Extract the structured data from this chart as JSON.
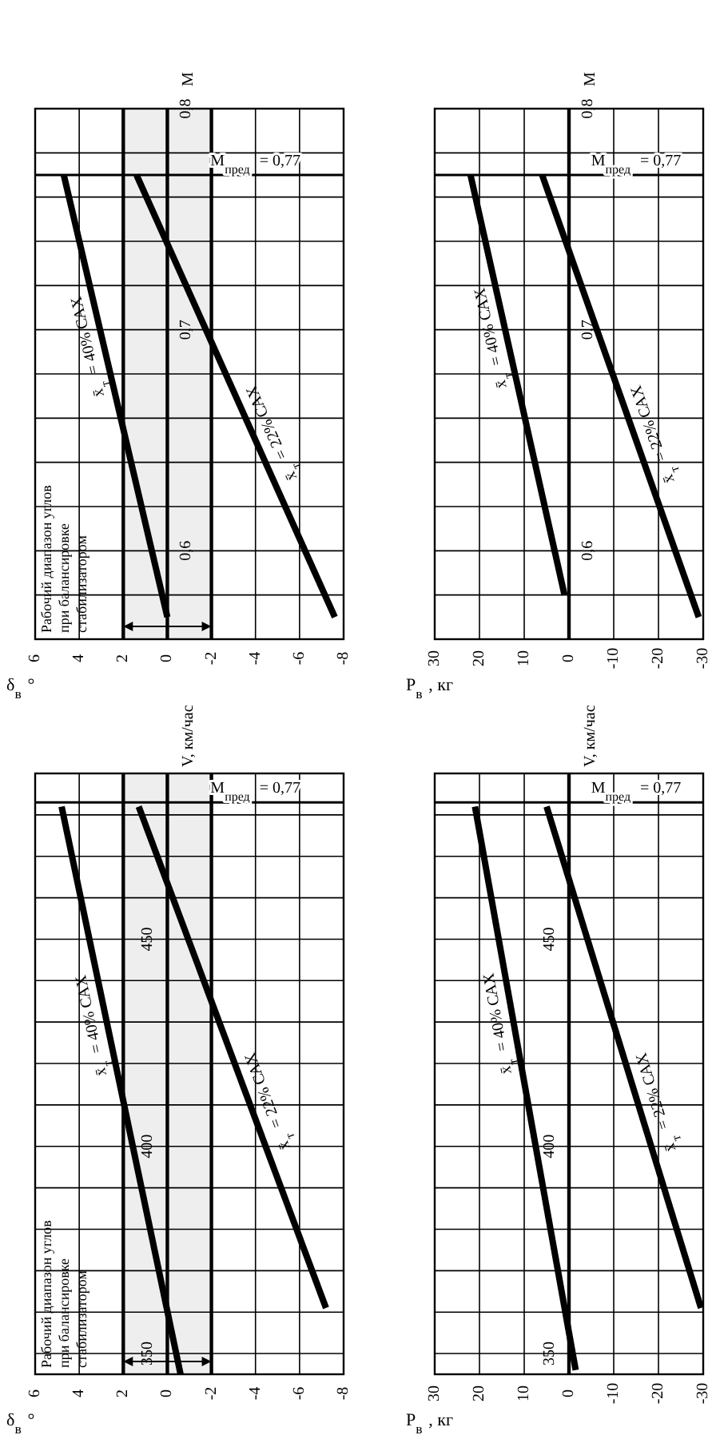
{
  "chart_data": [
    {
      "type": "line",
      "xlabel": "δ$_{в}$°",
      "ylabel": "M",
      "xlim": [
        6,
        -8
      ],
      "ylim": [
        0.56,
        0.8
      ],
      "grid": true,
      "xticks": [
        6,
        4,
        2,
        0,
        -2,
        -4,
        -6,
        -8
      ],
      "yticks": [
        {
          "value": 0.56,
          "label": null
        },
        {
          "value": 0.58,
          "label": null
        },
        {
          "value": 0.6,
          "label": "0,6"
        },
        {
          "value": 0.62,
          "label": null
        },
        {
          "value": 0.64,
          "label": null
        },
        {
          "value": 0.66,
          "label": null
        },
        {
          "value": 0.68,
          "label": null
        },
        {
          "value": 0.7,
          "label": "0,7"
        },
        {
          "value": 0.72,
          "label": null
        },
        {
          "value": 0.74,
          "label": null
        },
        {
          "value": 0.76,
          "label": null
        },
        {
          "value": 0.78,
          "label": null
        },
        {
          "value": 0.8,
          "label": "0,8"
        }
      ],
      "series": [
        {
          "name": "x̄$_{т}$ = 40% САХ",
          "color": "#000000",
          "x": [
            0,
            4.7
          ],
          "values": [
            0.57,
            0.77
          ]
        },
        {
          "name": "x̄$_{т}$ = 22% САХ",
          "color": "#000000",
          "x": [
            -7.6,
            1.4
          ],
          "values": [
            0.57,
            0.77
          ]
        }
      ],
      "ref_lines": [
        {
          "axis": "y",
          "value": 0.77,
          "label": "M$_{пред}$ = 0,77"
        }
      ],
      "bands": [
        {
          "axis": "x",
          "from": -2,
          "to": 2,
          "label": "Рабочий диапазон углов при балансировке стабилизатором",
          "color": "#eeeeee"
        }
      ]
    },
    {
      "type": "line",
      "xlabel": "P$_{в}$, кг",
      "ylabel": "M",
      "xlim": [
        30,
        -30
      ],
      "ylim": [
        0.56,
        0.8
      ],
      "grid": true,
      "xticks": [
        30,
        20,
        10,
        0,
        -10,
        -20,
        -30
      ],
      "yticks": [
        {
          "value": 0.56,
          "label": null
        },
        {
          "value": 0.58,
          "label": null
        },
        {
          "value": 0.6,
          "label": "0,6"
        },
        {
          "value": 0.62,
          "label": null
        },
        {
          "value": 0.64,
          "label": null
        },
        {
          "value": 0.66,
          "label": null
        },
        {
          "value": 0.68,
          "label": null
        },
        {
          "value": 0.7,
          "label": "0,7"
        },
        {
          "value": 0.72,
          "label": null
        },
        {
          "value": 0.74,
          "label": null
        },
        {
          "value": 0.76,
          "label": null
        },
        {
          "value": 0.78,
          "label": null
        },
        {
          "value": 0.8,
          "label": "0,8"
        }
      ],
      "series": [
        {
          "name": "x̄$_{т}$ = 40% САХ",
          "color": "#000000",
          "x": [
            1,
            22
          ],
          "values": [
            0.58,
            0.77
          ]
        },
        {
          "name": "x̄$_{т}$ = 22% САХ",
          "color": "#000000",
          "x": [
            -29,
            6
          ],
          "values": [
            0.57,
            0.77
          ]
        }
      ],
      "ref_lines": [
        {
          "axis": "y",
          "value": 0.77,
          "label": "M$_{пред}$ = 0,77"
        }
      ]
    },
    {
      "type": "line",
      "xlabel": "δ$_{в}$°",
      "ylabel": "V, км/час",
      "xlim": [
        6,
        -8
      ],
      "ylim": [
        345,
        490
      ],
      "grid": true,
      "xticks": [
        6,
        4,
        2,
        0,
        -2,
        -4,
        -6,
        -8
      ],
      "yticks": [
        {
          "value": 350,
          "label": "350"
        },
        {
          "value": 360,
          "label": null
        },
        {
          "value": 370,
          "label": null
        },
        {
          "value": 380,
          "label": null
        },
        {
          "value": 390,
          "label": null
        },
        {
          "value": 400,
          "label": "400"
        },
        {
          "value": 410,
          "label": null
        },
        {
          "value": 420,
          "label": null
        },
        {
          "value": 430,
          "label": null
        },
        {
          "value": 440,
          "label": null
        },
        {
          "value": 450,
          "label": "450"
        },
        {
          "value": 460,
          "label": null
        },
        {
          "value": 470,
          "label": null
        },
        {
          "value": 480,
          "label": null
        }
      ],
      "series": [
        {
          "name": "x̄$_{т}$ = 40% САХ",
          "color": "#000000",
          "x": [
            -0.6,
            4.8
          ],
          "values": [
            345,
            482
          ]
        },
        {
          "name": "x̄$_{т}$ = 22% САХ",
          "color": "#000000",
          "x": [
            -7.2,
            1.3
          ],
          "values": [
            361,
            482
          ]
        }
      ],
      "ref_lines": [
        {
          "axis": "y",
          "value": 483
        }
      ],
      "annotations": [
        {
          "text": "M$_{пред}$ = 0,77",
          "y": 483
        }
      ],
      "bands": [
        {
          "axis": "x",
          "from": -2,
          "to": 2,
          "label": "Рабочий диапазон углов при балансировке стабилизатором",
          "color": "#eeeeee"
        }
      ]
    },
    {
      "type": "line",
      "xlabel": "P$_{в}$, кг",
      "ylabel": "V, км/час",
      "xlim": [
        30,
        -30
      ],
      "ylim": [
        345,
        490
      ],
      "grid": true,
      "xticks": [
        30,
        20,
        10,
        0,
        -10,
        -20,
        -30
      ],
      "yticks": [
        {
          "value": 350,
          "label": "350"
        },
        {
          "value": 360,
          "label": null
        },
        {
          "value": 370,
          "label": null
        },
        {
          "value": 380,
          "label": null
        },
        {
          "value": 390,
          "label": null
        },
        {
          "value": 400,
          "label": "400"
        },
        {
          "value": 410,
          "label": null
        },
        {
          "value": 420,
          "label": null
        },
        {
          "value": 430,
          "label": null
        },
        {
          "value": 440,
          "label": null
        },
        {
          "value": 450,
          "label": "450"
        },
        {
          "value": 460,
          "label": null
        },
        {
          "value": 470,
          "label": null
        },
        {
          "value": 480,
          "label": null
        }
      ],
      "series": [
        {
          "name": "x̄$_{т}$ = 40% САХ",
          "color": "#000000",
          "x": [
            -1.5,
            21
          ],
          "values": [
            346,
            482
          ]
        },
        {
          "name": "x̄$_{т}$ = 22% САХ",
          "color": "#000000",
          "x": [
            -29.5,
            5
          ],
          "values": [
            361,
            482
          ]
        }
      ],
      "ref_lines": [
        {
          "axis": "y",
          "value": 483
        }
      ],
      "annotations": [
        {
          "text": "M$_{пред}$ = 0,77",
          "y": 483
        }
      ]
    }
  ]
}
